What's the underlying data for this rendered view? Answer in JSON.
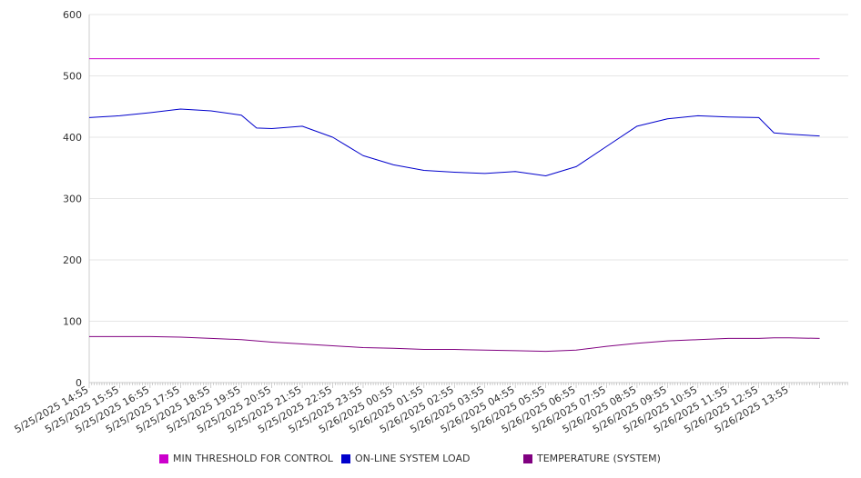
{
  "chart_data": {
    "type": "line",
    "title": "",
    "xlabel": "",
    "ylabel": "",
    "ylim": [
      0,
      600
    ],
    "y_ticks": [
      "0",
      "100",
      "200",
      "300",
      "400",
      "500",
      "600"
    ],
    "x_ticks": [
      "5/25/2025 14:55",
      "5/25/2025 15:55",
      "5/25/2025 16:55",
      "5/25/2025 17:55",
      "5/25/2025 18:55",
      "5/25/2025 19:55",
      "5/25/2025 20:55",
      "5/25/2025 21:55",
      "5/25/2025 22:55",
      "5/25/2025 23:55",
      "5/26/2025 00:55",
      "5/26/2025 01:55",
      "5/26/2025 02:55",
      "5/26/2025 03:55",
      "5/26/2025 04:55",
      "5/26/2025 05:55",
      "5/26/2025 06:55",
      "5/26/2025 07:55",
      "5/26/2025 08:55",
      "5/26/2025 09:55",
      "5/26/2025 10:55",
      "5/26/2025 11:55",
      "5/26/2025 12:55",
      "5/26/2025 13:55"
    ],
    "x": [
      "5/25/2025 14:55",
      "5/25/2025 15:55",
      "5/25/2025 16:55",
      "5/25/2025 17:55",
      "5/25/2025 18:55",
      "5/25/2025 19:55",
      "5/25/2025 20:25",
      "5/25/2025 20:55",
      "5/25/2025 21:55",
      "5/25/2025 22:55",
      "5/25/2025 23:55",
      "5/26/2025 00:55",
      "5/26/2025 01:55",
      "5/26/2025 02:55",
      "5/26/2025 03:55",
      "5/26/2025 04:55",
      "5/26/2025 05:55",
      "5/26/2025 06:55",
      "5/26/2025 07:55",
      "5/26/2025 08:55",
      "5/26/2025 09:55",
      "5/26/2025 10:55",
      "5/26/2025 11:55",
      "5/26/2025 12:55",
      "5/26/2025 13:25",
      "5/26/2025 13:55",
      "5/26/2025 14:55"
    ],
    "series": [
      {
        "name": "MIN THRESHOLD FOR CONTROL",
        "color": "#CC00CC",
        "values": [
          528,
          528,
          528,
          528,
          528,
          528,
          528,
          528,
          528,
          528,
          528,
          528,
          528,
          528,
          528,
          528,
          528,
          528,
          528,
          528,
          528,
          528,
          528,
          528,
          528,
          528,
          528
        ]
      },
      {
        "name": "ON-LINE SYSTEM LOAD",
        "color": "#0000CC",
        "values": [
          432,
          435,
          440,
          446,
          443,
          436,
          415,
          414,
          418,
          400,
          370,
          355,
          346,
          343,
          341,
          344,
          337,
          352,
          385,
          418,
          430,
          435,
          433,
          432,
          407,
          405,
          402
        ]
      },
      {
        "name": "TEMPERATURE (SYSTEM)",
        "color": "#800080",
        "values": [
          75,
          75,
          75,
          74,
          72,
          70,
          68,
          66,
          63,
          60,
          57,
          56,
          54,
          54,
          53,
          52,
          51,
          53,
          59,
          64,
          68,
          70,
          72,
          72,
          73,
          73,
          72
        ]
      }
    ],
    "grid": true,
    "legend_position": "bottom"
  }
}
